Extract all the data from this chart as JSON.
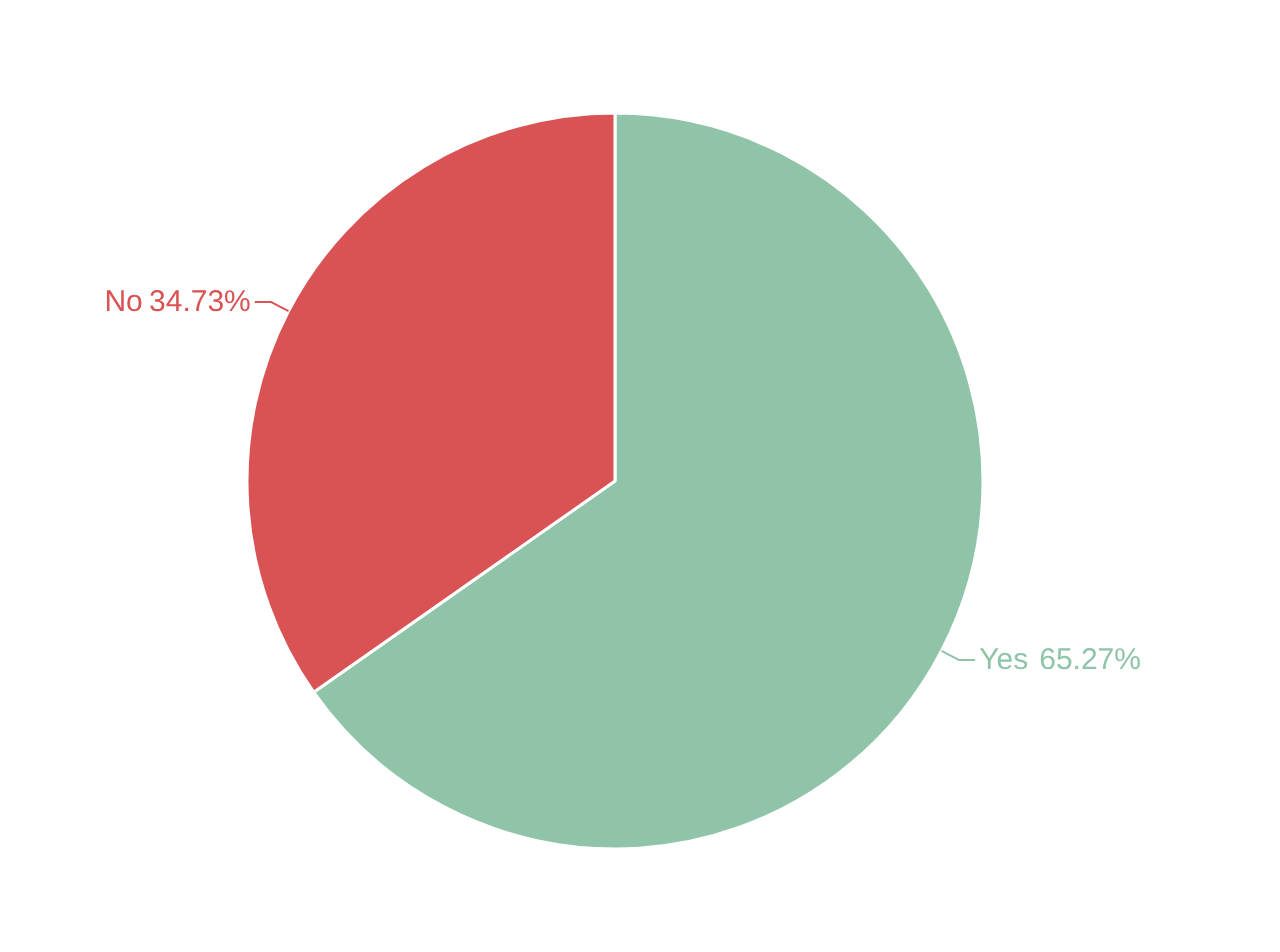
{
  "chart_data": {
    "type": "pie",
    "categories": [
      "Yes",
      "No"
    ],
    "values": [
      65.27,
      34.73
    ],
    "colors": [
      "#8fc4a8",
      "#d95355"
    ],
    "value_labels": [
      "65.27%",
      "34.73%"
    ]
  }
}
